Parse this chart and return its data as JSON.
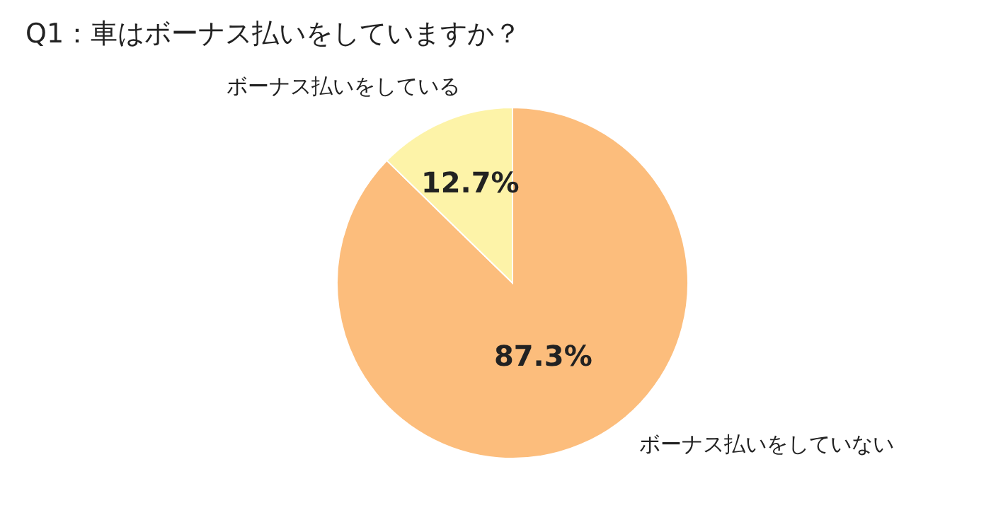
{
  "chart_data": {
    "type": "pie",
    "title": "Q1：車はボーナス払いをしていますか？",
    "categories": [
      "ボーナス払いをしていない",
      "ボーナス払いをしている"
    ],
    "values": [
      87.3,
      12.7
    ],
    "colors": [
      "#fcbd7c",
      "#fdf3a8"
    ],
    "value_labels": [
      "87.3%",
      "12.7%"
    ]
  }
}
